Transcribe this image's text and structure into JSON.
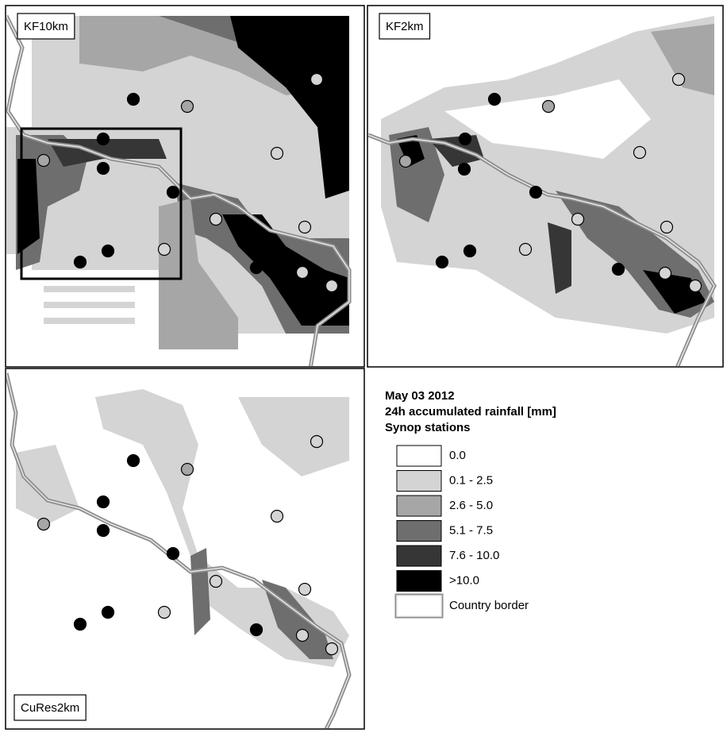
{
  "panels": [
    {
      "label": "KF10km"
    },
    {
      "label": "KF2km"
    },
    {
      "label": "CuRes2km"
    }
  ],
  "legend": {
    "title_lines": [
      "May 03 2012",
      "24h accumulated rainfall [mm]",
      "Synop stations"
    ],
    "items": [
      {
        "label": "0.0",
        "color": "#ffffff"
      },
      {
        "label": "0.1 - 2.5",
        "color": "#d4d4d4"
      },
      {
        "label": "2.6 - 5.0",
        "color": "#a6a6a6"
      },
      {
        "label": "5.1 - 7.5",
        "color": "#6e6e6e"
      },
      {
        "label": "7.6 - 10.0",
        "color": "#363636"
      },
      {
        "label": ">10.0",
        "color": "#000000"
      },
      {
        "label": "Country border",
        "color": "#ffffff"
      }
    ]
  }
}
